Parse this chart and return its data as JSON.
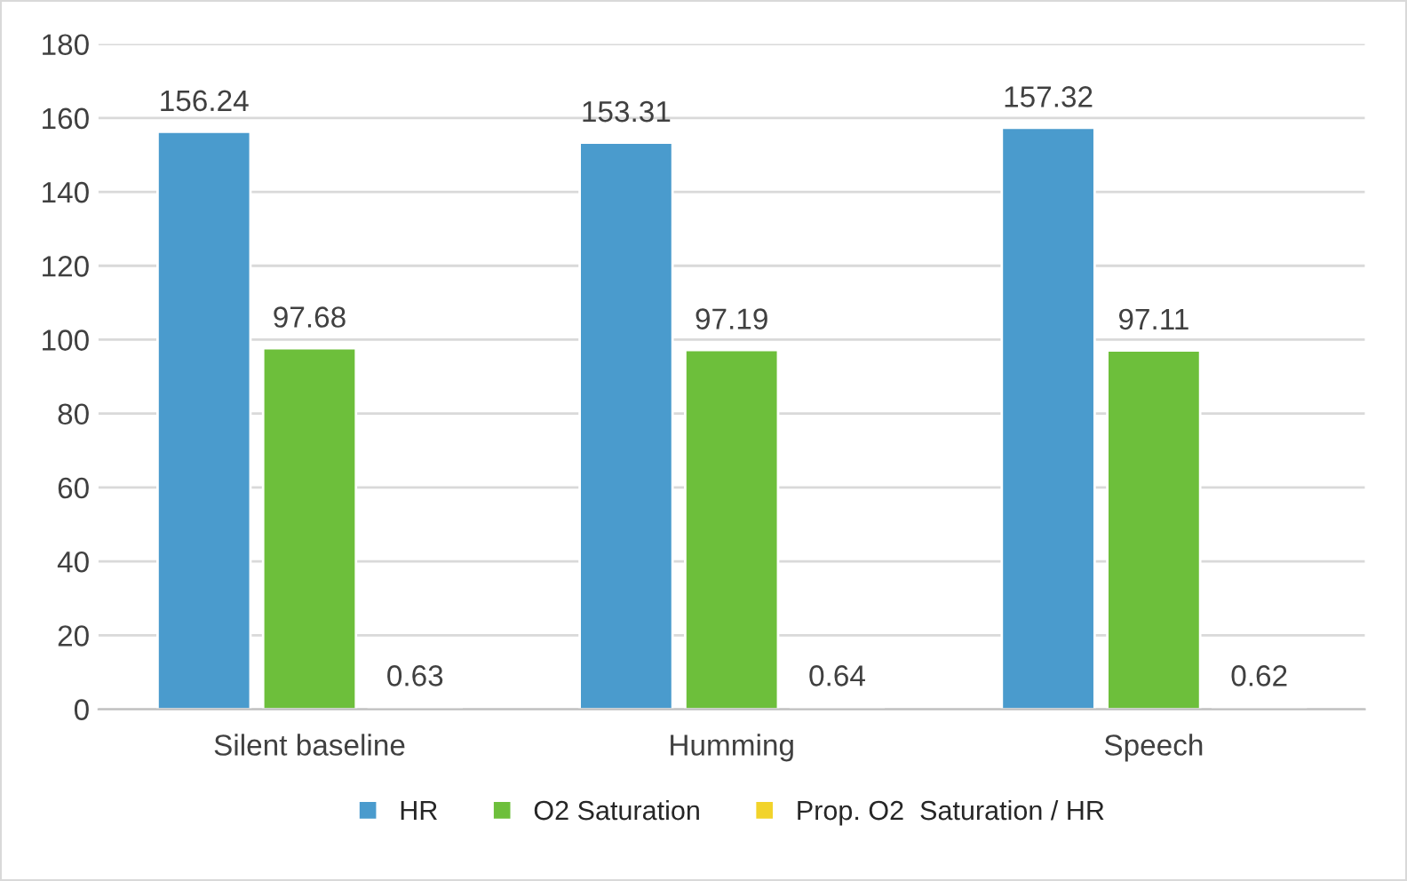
{
  "chart_data": {
    "type": "bar",
    "categories": [
      "Silent baseline",
      "Humming",
      "Speech"
    ],
    "series": [
      {
        "name": "HR",
        "color": "#4a9bcd",
        "values": [
          156.24,
          153.31,
          157.32
        ]
      },
      {
        "name": "O2 Saturation",
        "color": "#6dbf3b",
        "values": [
          97.68,
          97.19,
          97.11
        ]
      },
      {
        "name": "Prop. O2  Saturation / HR",
        "color": "#f2d32a",
        "values": [
          0.63,
          0.64,
          0.62
        ]
      }
    ],
    "ylim": [
      0,
      180
    ],
    "yticks": [
      0,
      20,
      40,
      60,
      80,
      100,
      120,
      140,
      160,
      180
    ],
    "grid": "y",
    "legend": "bottom",
    "data_labels": true
  }
}
